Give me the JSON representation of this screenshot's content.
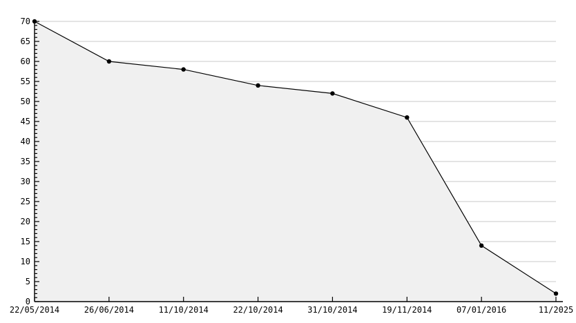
{
  "chart_data": {
    "type": "area",
    "title": "",
    "xlabel": "",
    "ylabel": "",
    "categories": [
      "22/05/2014",
      "26/06/2014",
      "11/10/2014",
      "22/10/2014",
      "31/10/2014",
      "19/11/2014",
      "07/01/2016",
      "11/2025"
    ],
    "values": [
      70,
      60,
      58,
      54,
      52,
      46,
      14,
      2
    ],
    "ylim": [
      0,
      70
    ],
    "y_major_step": 5,
    "y_minor_step": 1,
    "y_tick_labels": [
      "0",
      "5",
      "10",
      "15",
      "20",
      "25",
      "30",
      "35",
      "40",
      "45",
      "50",
      "55",
      "60",
      "65",
      "70"
    ],
    "grid": "horizontal-major-lines, no vertical lines, hidden under area fill",
    "legend": "none",
    "marker": "small black dot",
    "colors": {
      "background": "#ffffff",
      "area_fill": "#f0f0f0",
      "gridline": "#dcdcdc",
      "series_line": "#000000",
      "marker": "#000000",
      "axis": "#000000",
      "tick_label": "#000000"
    }
  }
}
